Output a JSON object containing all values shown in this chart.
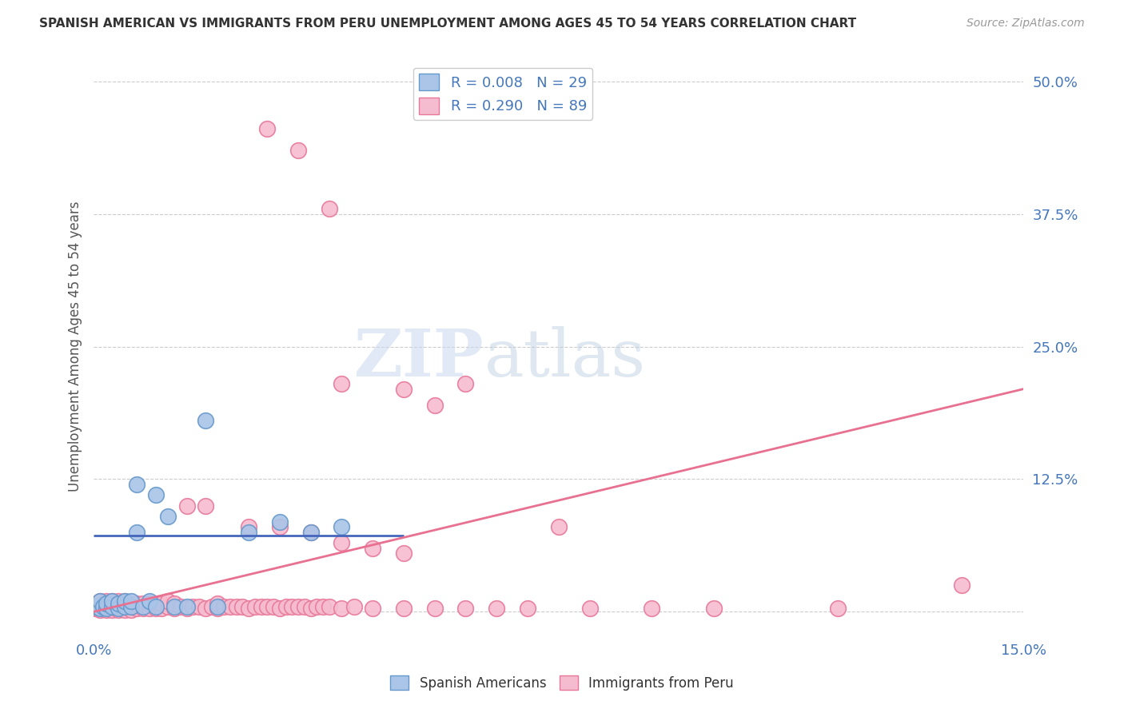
{
  "title": "SPANISH AMERICAN VS IMMIGRANTS FROM PERU UNEMPLOYMENT AMONG AGES 45 TO 54 YEARS CORRELATION CHART",
  "source": "Source: ZipAtlas.com",
  "ylabel": "Unemployment Among Ages 45 to 54 years",
  "xlim": [
    0.0,
    0.15
  ],
  "ylim": [
    -0.025,
    0.525
  ],
  "yticks": [
    0.0,
    0.125,
    0.25,
    0.375,
    0.5
  ],
  "ytick_labels": [
    "",
    "12.5%",
    "25.0%",
    "37.5%",
    "50.0%"
  ],
  "xticks": [
    0.0,
    0.025,
    0.05,
    0.075,
    0.1,
    0.125,
    0.15
  ],
  "xtick_labels": [
    "0.0%",
    "",
    "",
    "",
    "",
    "",
    "15.0%"
  ],
  "color_blue": "#aac5e8",
  "color_pink": "#f5bcd0",
  "edge_blue": "#6699cc",
  "edge_pink": "#e8789a",
  "line_blue": "#4466bb",
  "line_pink": "#e87090",
  "text_blue": "#4477bb",
  "r_blue": 0.008,
  "n_blue": 29,
  "r_pink": 0.29,
  "n_pink": 89,
  "watermark_zip": "ZIP",
  "watermark_atlas": "atlas",
  "legend_label_blue": "Spanish Americans",
  "legend_label_pink": "Immigrants from Peru",
  "blue_x": [
    0.0005,
    0.001,
    0.001,
    0.0015,
    0.002,
    0.002,
    0.003,
    0.003,
    0.004,
    0.004,
    0.005,
    0.005,
    0.006,
    0.006,
    0.007,
    0.008,
    0.009,
    0.01,
    0.01,
    0.012,
    0.013,
    0.015,
    0.018,
    0.02,
    0.025,
    0.03,
    0.035,
    0.04,
    0.007
  ],
  "blue_y": [
    0.005,
    0.003,
    0.01,
    0.005,
    0.003,
    0.008,
    0.005,
    0.01,
    0.003,
    0.008,
    0.005,
    0.01,
    0.005,
    0.01,
    0.075,
    0.005,
    0.01,
    0.11,
    0.005,
    0.09,
    0.005,
    0.005,
    0.18,
    0.005,
    0.075,
    0.085,
    0.075,
    0.08,
    0.12
  ],
  "pink_x": [
    0.0002,
    0.0005,
    0.001,
    0.001,
    0.001,
    0.0015,
    0.002,
    0.002,
    0.002,
    0.003,
    0.003,
    0.003,
    0.004,
    0.004,
    0.004,
    0.005,
    0.005,
    0.005,
    0.006,
    0.006,
    0.007,
    0.007,
    0.008,
    0.008,
    0.009,
    0.009,
    0.01,
    0.01,
    0.011,
    0.011,
    0.012,
    0.012,
    0.013,
    0.013,
    0.014,
    0.015,
    0.015,
    0.016,
    0.017,
    0.018,
    0.018,
    0.019,
    0.02,
    0.02,
    0.021,
    0.022,
    0.023,
    0.024,
    0.025,
    0.025,
    0.026,
    0.027,
    0.028,
    0.029,
    0.03,
    0.03,
    0.031,
    0.032,
    0.033,
    0.034,
    0.035,
    0.035,
    0.036,
    0.037,
    0.038,
    0.04,
    0.04,
    0.042,
    0.045,
    0.045,
    0.05,
    0.05,
    0.055,
    0.06,
    0.065,
    0.07,
    0.08,
    0.09,
    0.1,
    0.12,
    0.028,
    0.033,
    0.038,
    0.04,
    0.05,
    0.055,
    0.06,
    0.075,
    0.14
  ],
  "pink_y": [
    0.003,
    0.005,
    0.002,
    0.005,
    0.01,
    0.003,
    0.002,
    0.005,
    0.01,
    0.002,
    0.005,
    0.01,
    0.002,
    0.005,
    0.01,
    0.002,
    0.005,
    0.01,
    0.002,
    0.006,
    0.003,
    0.008,
    0.003,
    0.008,
    0.003,
    0.008,
    0.003,
    0.008,
    0.003,
    0.008,
    0.005,
    0.01,
    0.003,
    0.008,
    0.005,
    0.003,
    0.1,
    0.005,
    0.005,
    0.003,
    0.1,
    0.005,
    0.003,
    0.008,
    0.005,
    0.005,
    0.005,
    0.005,
    0.003,
    0.08,
    0.005,
    0.005,
    0.005,
    0.005,
    0.003,
    0.08,
    0.005,
    0.005,
    0.005,
    0.005,
    0.003,
    0.075,
    0.005,
    0.005,
    0.005,
    0.003,
    0.065,
    0.005,
    0.003,
    0.06,
    0.003,
    0.055,
    0.003,
    0.003,
    0.003,
    0.003,
    0.003,
    0.003,
    0.003,
    0.003,
    0.455,
    0.435,
    0.38,
    0.215,
    0.21,
    0.195,
    0.215,
    0.08,
    0.025
  ],
  "blue_line_x": [
    0.0,
    0.05
  ],
  "blue_line_y": [
    0.072,
    0.072
  ],
  "pink_line_x": [
    0.0,
    0.15
  ],
  "pink_line_y": [
    0.0,
    0.21
  ]
}
